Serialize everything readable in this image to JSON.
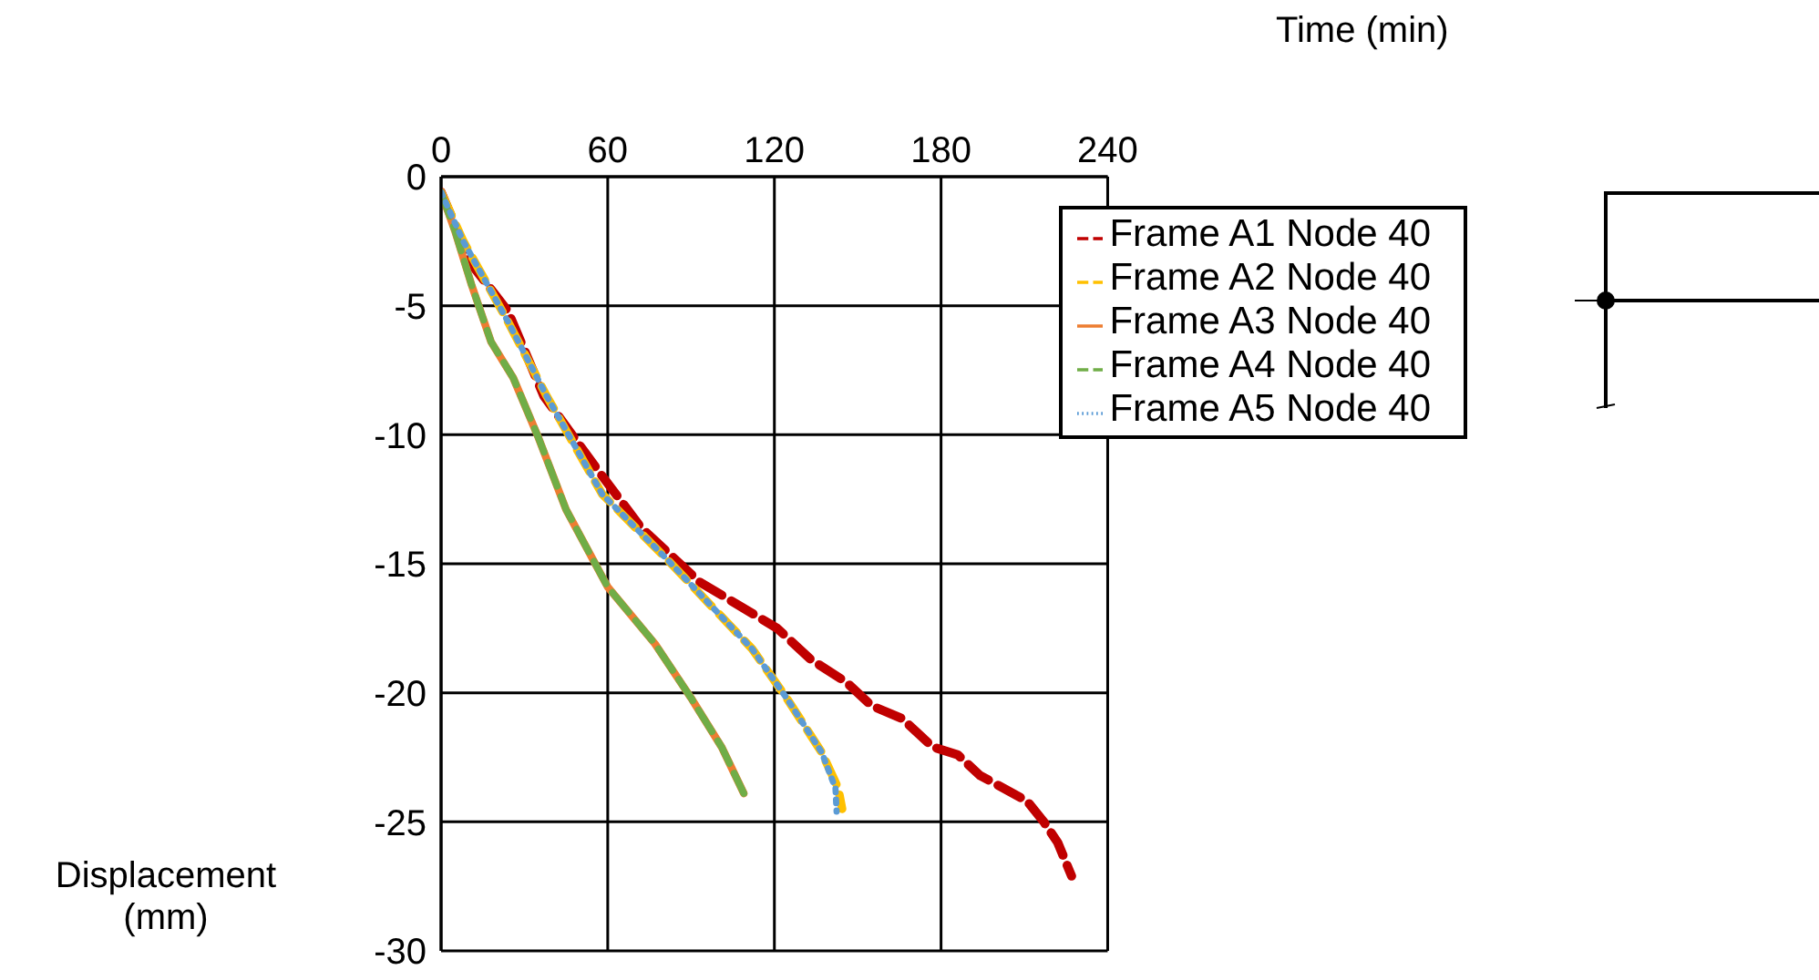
{
  "chart_data": {
    "type": "line",
    "xlabel": "Time (min)",
    "ylabel": "Displacement (mm)",
    "xlim": [
      0,
      240
    ],
    "xticks": [
      0,
      60,
      120,
      180,
      240
    ],
    "ylim": [
      -30,
      0
    ],
    "yticks": [
      0,
      -5,
      -10,
      -15,
      -20,
      -25,
      -30
    ],
    "grid": true,
    "legend": "top right",
    "marker": "none",
    "series": [
      {
        "name": "Frame A1 Node 40",
        "color": "#c00000",
        "line_style": "dashed",
        "x": [
          0,
          11,
          24,
          37,
          58,
          72,
          93,
          121,
          133,
          146,
          155,
          166,
          177,
          186,
          194,
          211,
          217,
          222,
          227
        ],
        "values": [
          -0.6,
          -3.4,
          -5.2,
          -8.5,
          -11.6,
          -13.6,
          -15.7,
          -17.5,
          -18.7,
          -19.6,
          -20.5,
          -21,
          -22.1,
          -22.4,
          -23.2,
          -24.2,
          -25,
          -25.8,
          -27.1
        ]
      },
      {
        "name": "Frame A2 Node 40",
        "color": "#ffc000",
        "line_style": "dashed",
        "x": [
          0,
          8,
          24,
          38,
          58,
          82,
          112,
          125,
          137,
          143,
          144.4
        ],
        "values": [
          -0.6,
          -2.5,
          -5.6,
          -8.5,
          -12.3,
          -14.9,
          -18.3,
          -20.3,
          -22.3,
          -23.7,
          -24.5
        ]
      },
      {
        "name": "Frame A3 Node 40",
        "color": "#ed7d31",
        "line_style": "solid",
        "x": [
          0,
          5,
          11,
          18,
          26,
          35,
          45,
          60,
          77,
          90,
          101,
          109
        ],
        "values": [
          -0.6,
          -2.1,
          -4.2,
          -6.4,
          -7.8,
          -10.1,
          -12.9,
          -15.9,
          -18.1,
          -20.2,
          -22.1,
          -23.9
        ]
      },
      {
        "name": "Frame A4 Node 40",
        "color": "#70ad47",
        "line_style": "dashed",
        "x": [
          0,
          5,
          11,
          18,
          26,
          35,
          45,
          60,
          77,
          90,
          101,
          109
        ],
        "values": [
          -0.6,
          -2.1,
          -4.2,
          -6.4,
          -7.8,
          -10.1,
          -12.9,
          -15.9,
          -18.1,
          -20.2,
          -22.1,
          -23.9
        ]
      },
      {
        "name": "Frame A5 Node 40",
        "color": "#5b9bd5",
        "line_style": "dotted",
        "x": [
          0,
          8,
          24,
          38,
          58,
          82,
          112,
          125,
          137,
          142,
          142.4
        ],
        "values": [
          -0.6,
          -2.5,
          -5.6,
          -8.5,
          -12.3,
          -14.9,
          -18.3,
          -20.3,
          -22.3,
          -23.7,
          -24.6
        ]
      }
    ]
  }
}
